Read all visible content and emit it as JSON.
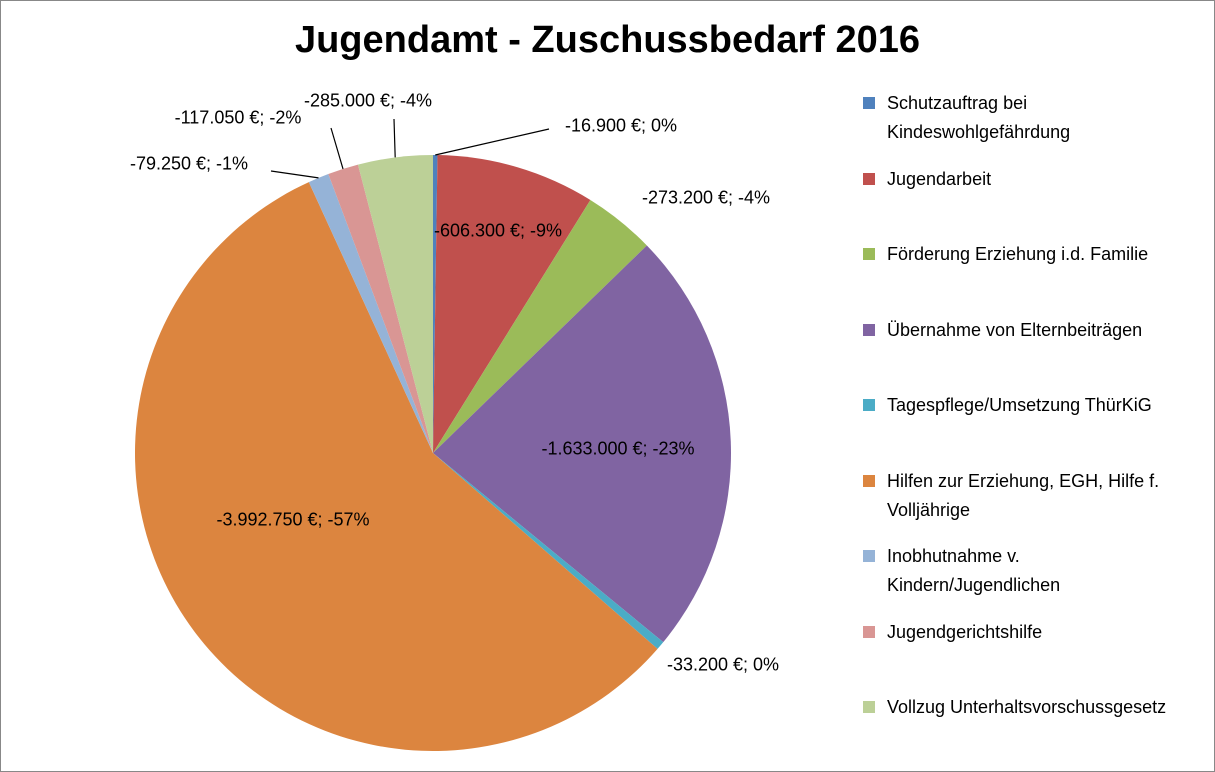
{
  "chart_data": {
    "type": "pie",
    "title": "Jugendamt - Zuschussbedarf 2016",
    "categories": [
      "Schutzauftrag bei Kindeswohlgefährdung",
      "Jugendarbeit",
      "Förderung Erziehung i.d. Familie",
      "Übernahme von Elternbeiträgen",
      "Tagespflege/Umsetzung ThürKiG",
      "Hilfen zur Erziehung, EGH, Hilfe f. Volljährige",
      "Inobhutnahme v. Kindern/Jugendlichen",
      "Jugendgerichtshilfe",
      "Vollzug Unterhaltsvorschussgesetz"
    ],
    "values": [
      -16900,
      -606300,
      -273200,
      -1633000,
      -33200,
      -3992750,
      -79250,
      -117050,
      -285000
    ],
    "value_labels": [
      "-16.900 €; 0%",
      "-606.300 €; -9%",
      "-273.200 €; -4%",
      "-1.633.000 €; -23%",
      "-33.200 €; 0%",
      "-3.992.750 €; -57%",
      "-79.250 €; -1%",
      "-117.050 €; -2%",
      "-285.000 €; -4%"
    ],
    "colors": [
      "#4f81bd",
      "#c0504d",
      "#9bbb59",
      "#8064a2",
      "#4bacc6",
      "#dc853f",
      "#95b3d7",
      "#d99694",
      "#bcd097"
    ],
    "legend": "right"
  }
}
